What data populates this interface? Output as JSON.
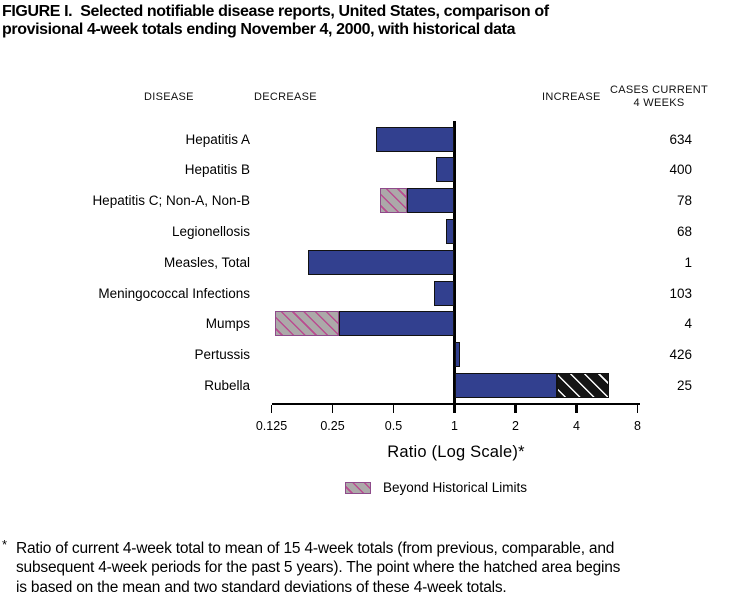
{
  "title": "FIGURE I.  Selected notifiable disease reports, United States, comparison of\nprovisional 4-week totals ending November 4, 2000, with historical data",
  "columns": {
    "disease": "DISEASE",
    "decrease": "DECREASE",
    "increase": "INCREASE",
    "cases_line1": "CASES CURRENT",
    "cases_line2": "4 WEEKS"
  },
  "chart_data": {
    "type": "bar",
    "orientation": "horizontal",
    "scale": "log2",
    "baseline": 1,
    "xlim": [
      0.125,
      8
    ],
    "axis_ticks": [
      0.125,
      0.25,
      0.5,
      1,
      2,
      4,
      8
    ],
    "tick_labels": [
      "0.125",
      "0.25",
      "0.5",
      "1",
      "2",
      "4",
      "8"
    ],
    "xlabel": "Ratio (Log Scale)*",
    "rows": [
      {
        "disease": "Hepatitis A",
        "cases": 634,
        "ratio": 0.41,
        "hatch_boundary": null
      },
      {
        "disease": "Hepatitis B",
        "cases": 400,
        "ratio": 0.81,
        "hatch_boundary": null
      },
      {
        "disease": "Hepatitis C; Non-A, Non-B",
        "cases": 78,
        "ratio": 0.43,
        "hatch_boundary": 0.58
      },
      {
        "disease": "Legionellosis",
        "cases": 68,
        "ratio": 0.91,
        "hatch_boundary": null
      },
      {
        "disease": "Measles, Total",
        "cases": 1,
        "ratio": 0.19,
        "hatch_boundary": null
      },
      {
        "disease": "Meningococcal Infections",
        "cases": 103,
        "ratio": 0.79,
        "hatch_boundary": null
      },
      {
        "disease": "Mumps",
        "cases": 4,
        "ratio": 0.13,
        "hatch_boundary": 0.27
      },
      {
        "disease": "Pertussis",
        "cases": 426,
        "ratio": 1.06,
        "hatch_boundary": null
      },
      {
        "disease": "Rubella",
        "cases": 25,
        "ratio": 5.8,
        "hatch_boundary": 3.2
      }
    ],
    "legend": {
      "label": "Beyond Historical Limits",
      "swatch": "beyond-limits-hatch"
    },
    "colors": {
      "bar_blue": "#32408F",
      "hatch_gray": "#ACA9A9",
      "hatch_pink": "#BA4B90",
      "hatch_border": "#8E4B8A",
      "beyond_black": "#151515"
    }
  },
  "footnote": {
    "marker": "*",
    "text": "Ratio of current 4-week total to mean of 15 4-week totals (from previous, comparable, and\nsubsequent 4-week periods for the past 5 years). The point where the hatched area begins\nis based on the mean and two standard deviations of these 4-week totals."
  }
}
